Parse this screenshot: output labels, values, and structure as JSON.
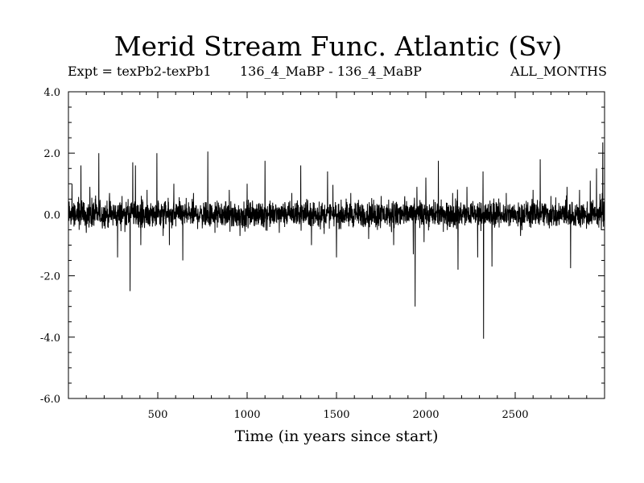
{
  "chart_data": {
    "type": "line",
    "title": "Merid Stream Func. Atlantic (Sv)",
    "subtitle_left": "Expt = texPb2-texPb1",
    "subtitle_center": "136_4_MaBP - 136_4_MaBP",
    "subtitle_right": "ALL_MONTHS",
    "xlabel": "Time (in years since start)",
    "ylabel": "",
    "xlim": [
      0,
      3000
    ],
    "ylim": [
      -6.0,
      4.0
    ],
    "x_ticks": [
      500,
      1000,
      1500,
      2000,
      2500
    ],
    "x_tick_labels": [
      "500",
      "1000",
      "1500",
      "2000",
      "2500"
    ],
    "y_ticks": [
      4.0,
      2.0,
      0.0,
      -2.0,
      -4.0,
      -6.0
    ],
    "y_tick_labels": [
      "4.0",
      "2.0",
      "0.0",
      "-2.0",
      "-4.0",
      "-6.0"
    ],
    "grid": false,
    "series": [
      {
        "color": "#000000",
        "noise_amplitude": 0.35,
        "spikes": [
          {
            "x": 20,
            "y": 1.0
          },
          {
            "x": 60,
            "y": -0.5
          },
          {
            "x": 70,
            "y": 1.6
          },
          {
            "x": 100,
            "y": -0.6
          },
          {
            "x": 120,
            "y": 0.9
          },
          {
            "x": 170,
            "y": 2.0
          },
          {
            "x": 230,
            "y": 0.7
          },
          {
            "x": 275,
            "y": -1.4
          },
          {
            "x": 300,
            "y": 0.6
          },
          {
            "x": 345,
            "y": -2.5
          },
          {
            "x": 360,
            "y": 1.7
          },
          {
            "x": 375,
            "y": 1.6
          },
          {
            "x": 405,
            "y": -1.0
          },
          {
            "x": 440,
            "y": 0.8
          },
          {
            "x": 495,
            "y": 2.0
          },
          {
            "x": 530,
            "y": -0.7
          },
          {
            "x": 565,
            "y": -1.0
          },
          {
            "x": 590,
            "y": 1.0
          },
          {
            "x": 640,
            "y": -1.5
          },
          {
            "x": 700,
            "y": 0.7
          },
          {
            "x": 780,
            "y": 2.05
          },
          {
            "x": 820,
            "y": -0.6
          },
          {
            "x": 900,
            "y": 0.8
          },
          {
            "x": 960,
            "y": -0.7
          },
          {
            "x": 1000,
            "y": 1.0
          },
          {
            "x": 1100,
            "y": 1.75
          },
          {
            "x": 1180,
            "y": -0.6
          },
          {
            "x": 1250,
            "y": 0.7
          },
          {
            "x": 1300,
            "y": 1.6
          },
          {
            "x": 1360,
            "y": -1.0
          },
          {
            "x": 1450,
            "y": 1.4
          },
          {
            "x": 1500,
            "y": -1.4
          },
          {
            "x": 1580,
            "y": 0.7
          },
          {
            "x": 1680,
            "y": -0.8
          },
          {
            "x": 1750,
            "y": 0.6
          },
          {
            "x": 1820,
            "y": -1.0
          },
          {
            "x": 1930,
            "y": -1.3
          },
          {
            "x": 1940,
            "y": -3.0
          },
          {
            "x": 1950,
            "y": 0.9
          },
          {
            "x": 1990,
            "y": -0.9
          },
          {
            "x": 2000,
            "y": 1.2
          },
          {
            "x": 2070,
            "y": 1.75
          },
          {
            "x": 2150,
            "y": 0.7
          },
          {
            "x": 2180,
            "y": -1.8
          },
          {
            "x": 2230,
            "y": 0.9
          },
          {
            "x": 2290,
            "y": -1.4
          },
          {
            "x": 2320,
            "y": 1.4
          },
          {
            "x": 2323,
            "y": -4.05
          },
          {
            "x": 2370,
            "y": -1.7
          },
          {
            "x": 2450,
            "y": 0.7
          },
          {
            "x": 2530,
            "y": -0.7
          },
          {
            "x": 2600,
            "y": 0.8
          },
          {
            "x": 2640,
            "y": 1.8
          },
          {
            "x": 2700,
            "y": 0.6
          },
          {
            "x": 2790,
            "y": 0.9
          },
          {
            "x": 2810,
            "y": -1.75
          },
          {
            "x": 2860,
            "y": 0.8
          },
          {
            "x": 2920,
            "y": 1.1
          },
          {
            "x": 2955,
            "y": 1.5
          },
          {
            "x": 2990,
            "y": 2.35
          }
        ]
      }
    ]
  }
}
